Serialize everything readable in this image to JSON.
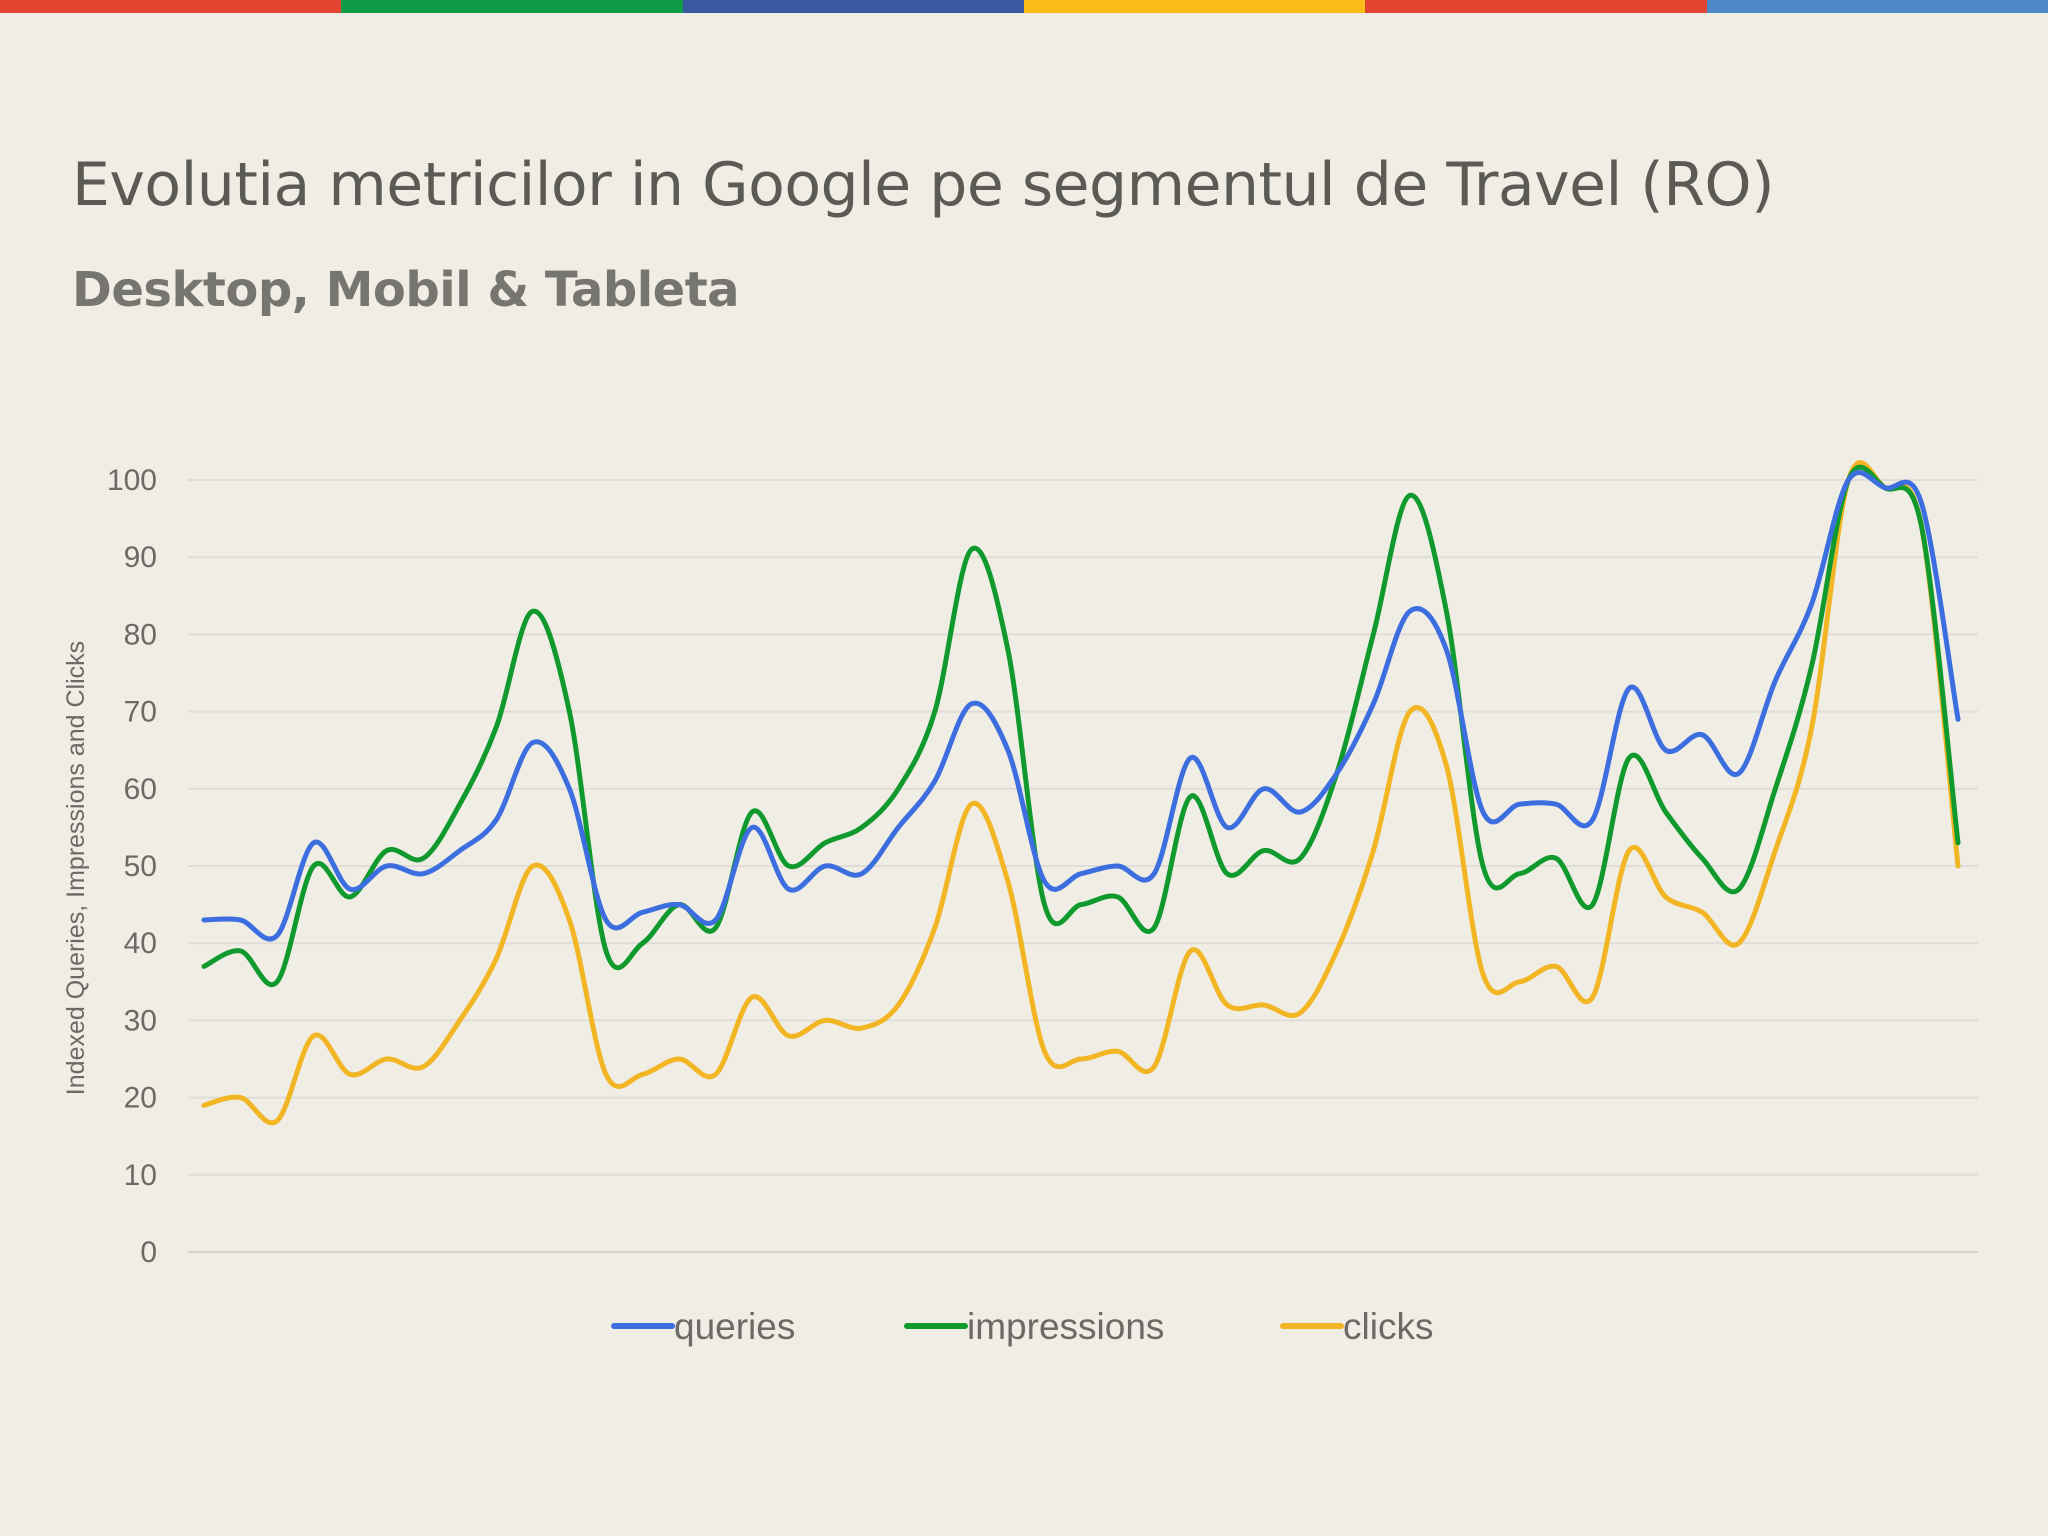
{
  "brand_bar": {
    "colors": [
      "#e34432",
      "#0e9d46",
      "#3a58a0",
      "#fbbc1a",
      "#e34432",
      "#4e88c9"
    ]
  },
  "header": {
    "title": "Evolutia metricilor in Google pe segmentul de Travel (RO)",
    "subtitle": "Desktop, Mobil & Tableta"
  },
  "chart_data": {
    "type": "line",
    "title": "",
    "xlabel": "",
    "ylabel": "Indexed Queries, Impressions and Clicks",
    "ylim": [
      0,
      100
    ],
    "yticks": [
      0,
      10,
      20,
      30,
      40,
      50,
      60,
      70,
      80,
      90,
      100
    ],
    "grid": true,
    "legend_position": "bottom",
    "x": [
      1,
      2,
      3,
      4,
      5,
      6,
      7,
      8,
      9,
      10,
      11,
      12,
      13,
      14,
      15,
      16,
      17,
      18,
      19,
      20,
      21,
      22,
      23,
      24,
      25,
      26,
      27,
      28,
      29,
      30,
      31,
      32,
      33,
      34,
      35,
      36,
      37,
      38,
      39,
      40,
      41,
      42,
      43,
      44,
      45,
      46,
      47,
      48,
      49
    ],
    "series": [
      {
        "name": "queries",
        "color": "#3c6ee0",
        "values": [
          43,
          43,
          41,
          53,
          47,
          50,
          49,
          52,
          56,
          66,
          60,
          43,
          44,
          45,
          43,
          55,
          47,
          50,
          49,
          55,
          61,
          71,
          65,
          48,
          49,
          50,
          49,
          64,
          55,
          60,
          57,
          62,
          71,
          83,
          78,
          57,
          58,
          58,
          56,
          73,
          65,
          67,
          62,
          74,
          84,
          100,
          99,
          97,
          69
        ]
      },
      {
        "name": "impressions",
        "color": "#109a2e",
        "values": [
          37,
          39,
          35,
          50,
          46,
          52,
          51,
          58,
          68,
          83,
          70,
          39,
          40,
          45,
          42,
          57,
          50,
          53,
          55,
          60,
          70,
          91,
          78,
          45,
          45,
          46,
          42,
          59,
          49,
          52,
          51,
          62,
          80,
          98,
          83,
          50,
          49,
          51,
          45,
          64,
          57,
          51,
          47,
          60,
          76,
          100,
          99,
          94,
          53
        ]
      },
      {
        "name": "clicks",
        "color": "#f2b524",
        "values": [
          19,
          20,
          17,
          28,
          23,
          25,
          24,
          30,
          38,
          50,
          43,
          23,
          23,
          25,
          23,
          33,
          28,
          30,
          29,
          32,
          42,
          58,
          48,
          26,
          25,
          26,
          24,
          39,
          32,
          32,
          31,
          39,
          52,
          70,
          63,
          36,
          35,
          37,
          33,
          52,
          46,
          44,
          40,
          52,
          68,
          100,
          99,
          94,
          50
        ]
      }
    ]
  }
}
